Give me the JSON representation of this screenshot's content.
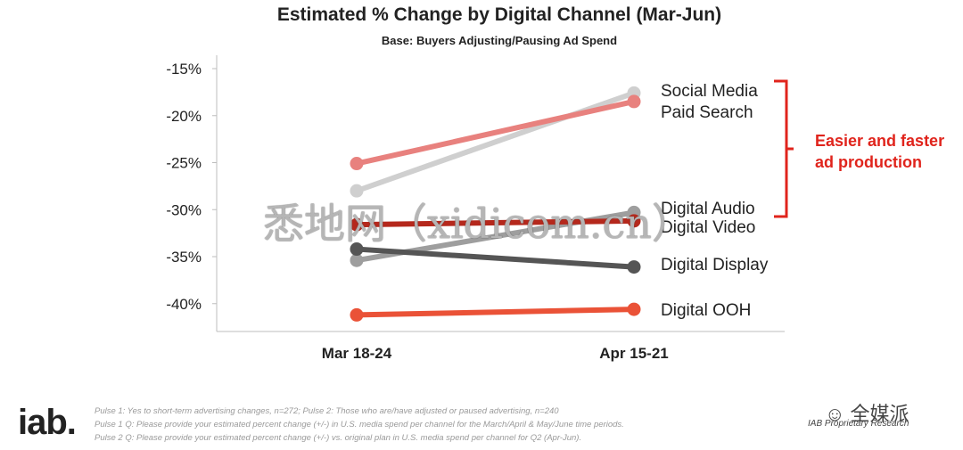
{
  "chart_data": {
    "type": "line",
    "title": "Estimated % Change by Digital Channel (Mar-Jun)",
    "subtitle": "Base:  Buyers Adjusting/Pausing Ad Spend",
    "categories": [
      "Mar 18-24",
      "Apr 15-21"
    ],
    "y_ticks": [
      "-15%",
      "-20%",
      "-25%",
      "-30%",
      "-35%",
      "-40%"
    ],
    "ylim": [
      -43,
      -15
    ],
    "grid": false,
    "series": [
      {
        "name": "Social Media",
        "values": [
          -28,
          -17.6
        ],
        "color": "#cfcfcf"
      },
      {
        "name": "Paid Search",
        "values": [
          -25.1,
          -18.5
        ],
        "color": "#e8817e"
      },
      {
        "name": "Digital Audio",
        "values": [
          -35.4,
          -30.3
        ],
        "color": "#9e9e9e"
      },
      {
        "name": "Digital Video",
        "values": [
          -31.6,
          -31.2
        ],
        "color": "#b5281c"
      },
      {
        "name": "Digital Display",
        "values": [
          -34.2,
          -36.1
        ],
        "color": "#555555"
      },
      {
        "name": "Digital OOH",
        "values": [
          -41.2,
          -40.6
        ],
        "color": "#ea5237"
      }
    ],
    "annotation": {
      "lines": [
        "Easier and faster",
        "ad production"
      ],
      "color": "#e0241c"
    }
  },
  "footer": {
    "logo": "iab.",
    "notes": [
      "Pulse 1: Yes to short-term advertising changes, n=272; Pulse 2: Those who are/have adjusted or paused advertising, n=240",
      "Pulse 1 Q: Please provide your estimated percent change (+/-) in U.S. media spend per channel for the March/April & May/June time periods.",
      "Pulse 2 Q: Please provide your estimated percent change (+/-) vs. original plan in U.S. media spend per channel for Q2 (Apr-Jun)."
    ],
    "brand": "全媒派",
    "proprietary": "IAB Proprietary Research"
  },
  "watermark": "悉地网（xidicom.cn）"
}
